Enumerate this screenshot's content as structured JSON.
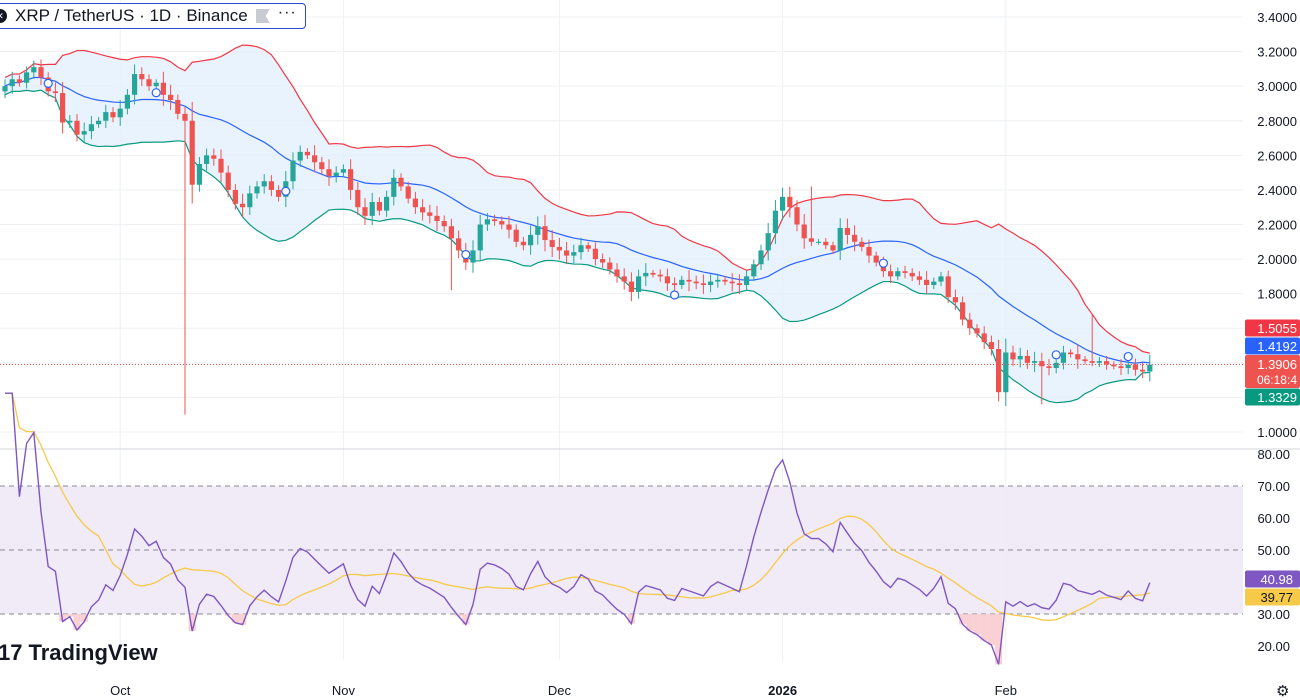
{
  "header": {
    "symbol_label": "XRP / TetherUS · 1D · Binance",
    "logo_icon": "xrp-coin-icon",
    "flag_icon": "flag-icon",
    "more_icon": "more-dots-icon",
    "more_label": "···"
  },
  "branding": {
    "logo_text": "TradingView",
    "mark": "17"
  },
  "settings_icon": "gear-icon",
  "colors": {
    "up": "#26a69a",
    "down": "#ef5350",
    "basis": "#2962ff",
    "upper": "#f23645",
    "lower": "#089981",
    "rsi": "#7e57c2",
    "rsi_ma": "#f7c948",
    "band_fill": "#e3f0fd",
    "rsi_fill": "#ede7f6"
  },
  "chart_data": [
    {
      "type": "candlestick",
      "title": "XRP / TetherUS · 1D · Binance",
      "indicators": [
        "Bollinger Bands"
      ],
      "ylim": [
        0.95,
        3.45
      ],
      "y_ticks": [
        "3.4000",
        "3.2000",
        "3.0000",
        "2.8000",
        "2.6000",
        "2.4000",
        "2.2000",
        "2.0000",
        "1.8000",
        "1.0000"
      ],
      "x_tick_labels": [
        {
          "label": "Oct",
          "index": 16
        },
        {
          "label": "Nov",
          "index": 47
        },
        {
          "label": "Dec",
          "index": 77
        },
        {
          "label": "2026",
          "index": 108
        },
        {
          "label": "Feb",
          "index": 139
        }
      ],
      "price_labels": {
        "upper": "1.5055",
        "basis": "1.4192",
        "last": "1.3906",
        "countdown": "06:18:4",
        "lower": "1.3329",
        "last_value": 1.3906
      },
      "closes": [
        3.0,
        3.04,
        3.02,
        3.08,
        3.11,
        3.05,
        2.97,
        2.96,
        2.79,
        2.8,
        2.72,
        2.74,
        2.78,
        2.8,
        2.85,
        2.82,
        2.87,
        2.95,
        3.07,
        3.04,
        3.0,
        3.02,
        2.95,
        2.92,
        2.84,
        2.8,
        2.43,
        2.55,
        2.6,
        2.58,
        2.5,
        2.4,
        2.32,
        2.3,
        2.38,
        2.42,
        2.45,
        2.4,
        2.36,
        2.45,
        2.57,
        2.62,
        2.6,
        2.56,
        2.52,
        2.48,
        2.5,
        2.52,
        2.4,
        2.3,
        2.25,
        2.33,
        2.28,
        2.36,
        2.47,
        2.42,
        2.35,
        2.3,
        2.27,
        2.25,
        2.22,
        2.19,
        2.12,
        2.05,
        1.98,
        2.05,
        2.2,
        2.23,
        2.22,
        2.2,
        2.17,
        2.1,
        2.08,
        2.14,
        2.19,
        2.11,
        2.07,
        2.05,
        2.02,
        2.04,
        2.08,
        2.06,
        2.0,
        1.98,
        1.94,
        1.9,
        1.87,
        1.81,
        1.9,
        1.92,
        1.91,
        1.9,
        1.86,
        1.85,
        1.88,
        1.87,
        1.86,
        1.85,
        1.87,
        1.88,
        1.87,
        1.86,
        1.85,
        1.9,
        1.97,
        2.05,
        2.15,
        2.28,
        2.36,
        2.3,
        2.2,
        2.12,
        2.1,
        2.1,
        2.08,
        2.05,
        2.18,
        2.14,
        2.1,
        2.07,
        2.02,
        1.98,
        1.93,
        1.9,
        1.93,
        1.92,
        1.9,
        1.88,
        1.85,
        1.87,
        1.9,
        1.78,
        1.75,
        1.65,
        1.6,
        1.57,
        1.52,
        1.48,
        1.23,
        1.46,
        1.42,
        1.44,
        1.4,
        1.41,
        1.38,
        1.37,
        1.4,
        1.46,
        1.45,
        1.42,
        1.41,
        1.4,
        1.41,
        1.39,
        1.38,
        1.37,
        1.39,
        1.36,
        1.35,
        1.39
      ],
      "events_at": [
        6,
        21,
        39,
        64,
        93,
        122,
        146,
        156
      ]
    },
    {
      "type": "line",
      "title": "RSI",
      "ylim": [
        15,
        82
      ],
      "y_ticks": [
        "80.00",
        "70.00",
        "60.00",
        "50.00",
        "30.00",
        "20.00"
      ],
      "band": [
        30,
        70
      ],
      "midline": 50,
      "series": [
        {
          "key": "rsi",
          "current": "40.98"
        },
        {
          "key": "rsi_ma",
          "current": "39.77"
        }
      ]
    }
  ]
}
